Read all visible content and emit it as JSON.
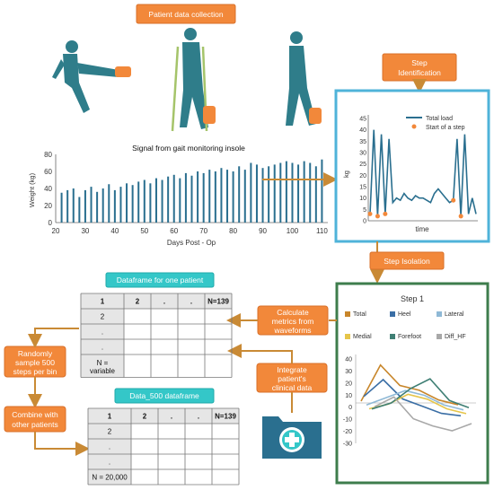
{
  "labels": {
    "patient_data_collection": "Patient data collection",
    "step_identification_1": "Step",
    "step_identification_2": "Identification",
    "signal_title": "Signal from gait monitoring insole",
    "step_isolation": "Step Isolation",
    "dataframe_one_patient": "Dataframe for one patient",
    "calculate_metrics_1": "Calculate",
    "calculate_metrics_2": "metrics from",
    "calculate_metrics_3": "waveforms",
    "integrate_1": "Integrate",
    "integrate_2": "patient's",
    "integrate_3": "clinical data",
    "randomly_1": "Randomly",
    "randomly_2": "sample 500",
    "randomly_3": "steps per bin",
    "combine_1": "Combine with",
    "combine_2": "other patients",
    "data500": "Data_500 dataframe"
  },
  "table_one": {
    "header": [
      "1",
      "2",
      ".",
      ".",
      "N=139"
    ],
    "rows": [
      "2",
      ".",
      ".",
      "N ="
    ],
    "last_row_extra": "variable"
  },
  "table_500": {
    "header": [
      "1",
      "2",
      ".",
      ".",
      "N=139"
    ],
    "rows": [
      "2",
      ".",
      ".",
      "N = 20,000"
    ]
  },
  "chart_data": [
    {
      "type": "bar",
      "xlabel": "Days Post - Op",
      "ylabel": "Weight (kg)",
      "xlim": [
        20,
        112
      ],
      "ylim": [
        0,
        80
      ],
      "xticks": [
        "20",
        "30",
        "40",
        "50",
        "60",
        "70",
        "80",
        "90",
        "100",
        "110"
      ],
      "yticks": [
        "0",
        "20",
        "40",
        "60",
        "80"
      ],
      "x": [
        22,
        24,
        26,
        28,
        30,
        32,
        34,
        36,
        38,
        40,
        42,
        44,
        46,
        48,
        50,
        52,
        54,
        56,
        58,
        60,
        62,
        64,
        66,
        68,
        70,
        72,
        74,
        76,
        78,
        80,
        82,
        84,
        86,
        88,
        90,
        92,
        94,
        96,
        98,
        100,
        102,
        104,
        106,
        108,
        110
      ],
      "values": [
        35,
        38,
        40,
        30,
        38,
        42,
        36,
        40,
        45,
        38,
        42,
        46,
        44,
        48,
        50,
        46,
        52,
        50,
        54,
        56,
        52,
        58,
        55,
        60,
        58,
        62,
        60,
        64,
        62,
        60,
        66,
        62,
        70,
        68,
        64,
        66,
        68,
        70,
        72,
        70,
        68,
        72,
        70,
        66,
        74
      ]
    },
    {
      "type": "line",
      "xlabel": "time",
      "ylabel": "kg",
      "ylim": [
        0,
        45
      ],
      "yticks": [
        "0",
        "5",
        "10",
        "15",
        "20",
        "25",
        "30",
        "35",
        "40",
        "45"
      ],
      "legend": [
        "Total load",
        "Start of a step"
      ],
      "series": [
        {
          "name": "Total load",
          "values": [
            3,
            40,
            2,
            38,
            3,
            36,
            8,
            10,
            9,
            12,
            10,
            9,
            11,
            10,
            10,
            9,
            8,
            12,
            14,
            12,
            10,
            8,
            9,
            36,
            2,
            38,
            3,
            10,
            3
          ]
        }
      ],
      "step_starts": [
        1,
        3,
        5,
        23,
        25
      ]
    },
    {
      "type": "line",
      "title": "Step 1",
      "ylim": [
        -30,
        40
      ],
      "yticks": [
        "40",
        "30",
        "20",
        "10",
        "0",
        "-10",
        "-20",
        "-30"
      ],
      "series": [
        {
          "name": "Total",
          "color": "#c8862a",
          "values": [
            5,
            35,
            18,
            14,
            6,
            2
          ]
        },
        {
          "name": "Heel",
          "color": "#3a6ea5",
          "values": [
            10,
            24,
            8,
            2,
            -4,
            -6
          ]
        },
        {
          "name": "Lateral",
          "color": "#8fb9d6",
          "values": [
            4,
            10,
            16,
            12,
            4,
            0
          ]
        },
        {
          "name": "Medial",
          "color": "#e6c54a",
          "values": [
            2,
            6,
            14,
            10,
            2,
            -2
          ]
        },
        {
          "name": "Forefoot",
          "color": "#3f7f74",
          "values": [
            3,
            8,
            20,
            28,
            10,
            4
          ]
        },
        {
          "name": "Diff_HF",
          "color": "#a8a8a8",
          "values": [
            6,
            14,
            -4,
            -10,
            -14,
            -8
          ]
        }
      ]
    }
  ],
  "colors": {
    "accent_orange": "#f2883a",
    "accent_teal": "#34c7c8",
    "panel_blue": "#4fb3d9",
    "panel_green": "#3e7d4c",
    "plot_teal": "#2a6f8f"
  }
}
